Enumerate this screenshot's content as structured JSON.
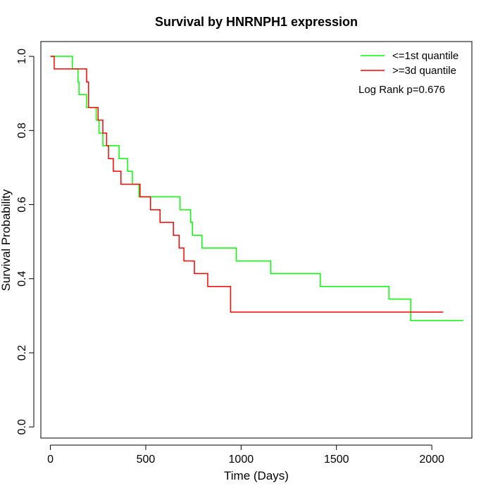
{
  "chart_data": {
    "type": "line",
    "title": "Survival by HNRNPH1 expression",
    "xlabel": "Time (Days)",
    "ylabel": "Survival Probability",
    "xlim": [
      -50,
      2210
    ],
    "ylim": [
      -0.03,
      1.04
    ],
    "xticks": [
      0,
      500,
      1000,
      1500,
      2000
    ],
    "yticks": [
      0.0,
      0.2,
      0.4,
      0.6,
      0.8,
      1.0
    ],
    "xtick_labels": [
      "0",
      "500",
      "1000",
      "1500",
      "2000"
    ],
    "ytick_labels": [
      "0.0",
      "0.2",
      "0.4",
      "0.6",
      "0.8",
      "1.0"
    ],
    "grid": false,
    "legend_position": "top-right",
    "annotation": "Log Rank p=0.676",
    "series": [
      {
        "name": "<=1st quantile",
        "color": "#00ff00",
        "step": true,
        "x": [
          0,
          115,
          145,
          150,
          190,
          240,
          255,
          275,
          295,
          360,
          405,
          430,
          465,
          680,
          735,
          745,
          795,
          975,
          1155,
          1415,
          1775,
          1890,
          2165
        ],
        "y": [
          1.0,
          0.966,
          0.931,
          0.897,
          0.862,
          0.828,
          0.793,
          0.759,
          0.759,
          0.724,
          0.69,
          0.655,
          0.621,
          0.586,
          0.552,
          0.517,
          0.483,
          0.448,
          0.414,
          0.379,
          0.345,
          0.287,
          0.287
        ]
      },
      {
        "name": ">=3d quantile",
        "color": "#ff0000",
        "step": true,
        "x": [
          0,
          20,
          190,
          200,
          250,
          275,
          295,
          305,
          330,
          370,
          470,
          525,
          575,
          645,
          675,
          700,
          755,
          825,
          945,
          2060
        ],
        "y": [
          1.0,
          0.966,
          0.931,
          0.862,
          0.828,
          0.793,
          0.759,
          0.724,
          0.69,
          0.655,
          0.621,
          0.586,
          0.552,
          0.517,
          0.483,
          0.448,
          0.414,
          0.379,
          0.31,
          0.31
        ]
      }
    ]
  }
}
